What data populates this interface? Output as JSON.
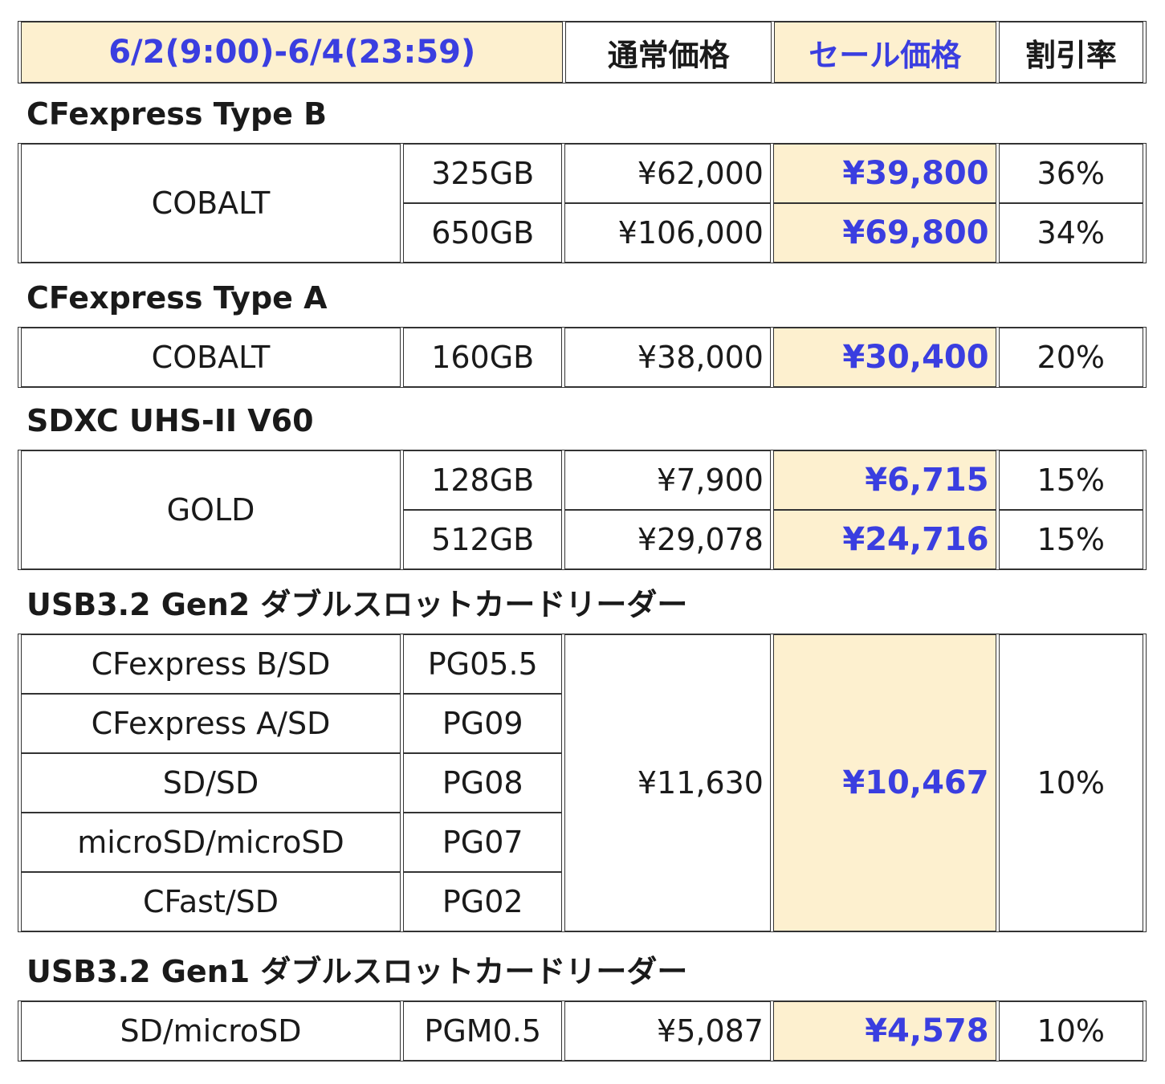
{
  "header": {
    "period": "6/2(9:00)-6/4(23:59)",
    "regular_price": "通常価格",
    "sale_price": "セール価格",
    "discount_rate": "割引率"
  },
  "sections": [
    {
      "title": "CFexpress Type B",
      "name": "COBALT",
      "rows": [
        {
          "capacity": "325GB",
          "regular": "¥62,000",
          "sale": "¥39,800",
          "discount": "36%"
        },
        {
          "capacity": "650GB",
          "regular": "¥106,000",
          "sale": "¥69,800",
          "discount": "34%"
        }
      ]
    },
    {
      "title": "CFexpress Type A",
      "name": "COBALT",
      "rows": [
        {
          "capacity": "160GB",
          "regular": "¥38,000",
          "sale": "¥30,400",
          "discount": "20%"
        }
      ]
    },
    {
      "title": "SDXC UHS-II V60",
      "name": "GOLD",
      "rows": [
        {
          "capacity": "128GB",
          "regular": "¥7,900",
          "sale": "¥6,715",
          "discount": "15%"
        },
        {
          "capacity": "512GB",
          "regular": "¥29,078",
          "sale": "¥24,716",
          "discount": "15%"
        }
      ]
    },
    {
      "title": "USB3.2 Gen2 ダブルスロットカードリーダー",
      "regular": "¥11,630",
      "sale": "¥10,467",
      "discount": "10%",
      "rows": [
        {
          "type": "CFexpress B/SD",
          "model": "PG05.5"
        },
        {
          "type": "CFexpress A/SD",
          "model": "PG09"
        },
        {
          "type": "SD/SD",
          "model": "PG08"
        },
        {
          "type": "microSD/microSD",
          "model": "PG07"
        },
        {
          "type": "CFast/SD",
          "model": "PG02"
        }
      ]
    },
    {
      "title": "USB3.2 Gen1 ダブルスロットカードリーダー",
      "rows": [
        {
          "type": "SD/microSD",
          "model": "PGM0.5",
          "regular": "¥5,087",
          "sale": "¥4,578",
          "discount": "10%"
        }
      ]
    }
  ]
}
